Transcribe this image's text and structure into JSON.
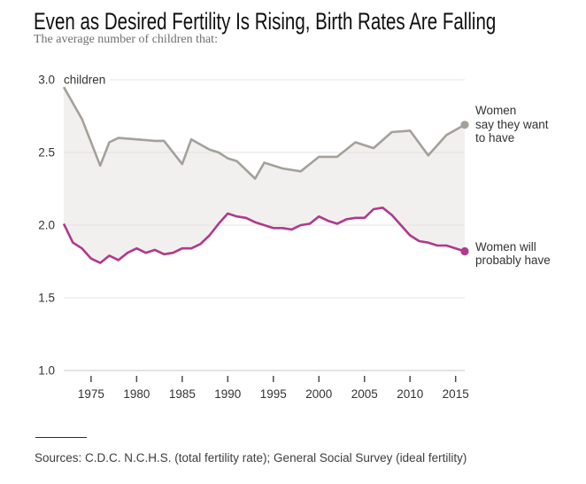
{
  "page": {
    "title": "Even as Desired Fertility Is Rising, Birth Rates Are Falling",
    "subtitle": "The average number of children that:",
    "source_note": "Sources: C.D.C. N.C.H.S. (total fertility rate); General Social Survey (ideal fertility)"
  },
  "annotations": {
    "ideal_label": "Women\nsay they want\nto have",
    "tfr_label": "Women will\nprobably have"
  },
  "colors": {
    "ideal_line": "#a5a099",
    "tfr_line": "#b0388e",
    "band_fill": "#f1f0ee",
    "gridline": "#e4e2e0",
    "axis_line": "#c8c7c5",
    "tick": "#4d4d4d",
    "axis_text": "#333333"
  },
  "chart_data": {
    "type": "line",
    "title": "Even as Desired Fertility Is Rising, Birth Rates Are Falling",
    "subtitle": "The average number of children that:",
    "unit_label": "children",
    "xlabel": "",
    "ylabel": "children",
    "xlim": [
      1972,
      2016
    ],
    "ylim": [
      1.0,
      3.0
    ],
    "x_ticks": [
      1975,
      1980,
      1985,
      1990,
      1995,
      2000,
      2005,
      2010,
      2015
    ],
    "y_ticks": [
      3.0,
      2.5,
      2.0,
      1.5,
      1.0
    ],
    "grid": true,
    "legend_position": "right-of-line-ends",
    "band_between_series": true,
    "series": [
      {
        "id": "ideal",
        "name": "Women say they want to have",
        "color_key": "ideal_line",
        "points": [
          [
            1972,
            2.95
          ],
          [
            1974,
            2.73
          ],
          [
            1976,
            2.41
          ],
          [
            1977,
            2.57
          ],
          [
            1978,
            2.6
          ],
          [
            1980,
            2.59
          ],
          [
            1982,
            2.58
          ],
          [
            1983,
            2.58
          ],
          [
            1985,
            2.42
          ],
          [
            1986,
            2.59
          ],
          [
            1988,
            2.52
          ],
          [
            1989,
            2.5
          ],
          [
            1990,
            2.46
          ],
          [
            1991,
            2.44
          ],
          [
            1993,
            2.32
          ],
          [
            1994,
            2.43
          ],
          [
            1996,
            2.39
          ],
          [
            1998,
            2.37
          ],
          [
            2000,
            2.47
          ],
          [
            2002,
            2.47
          ],
          [
            2004,
            2.57
          ],
          [
            2006,
            2.53
          ],
          [
            2008,
            2.64
          ],
          [
            2010,
            2.65
          ],
          [
            2012,
            2.48
          ],
          [
            2014,
            2.62
          ],
          [
            2016,
            2.69
          ]
        ]
      },
      {
        "id": "tfr",
        "name": "Women will probably have",
        "color_key": "tfr_line",
        "points": [
          [
            1972,
            2.01
          ],
          [
            1973,
            1.88
          ],
          [
            1974,
            1.84
          ],
          [
            1975,
            1.77
          ],
          [
            1976,
            1.74
          ],
          [
            1977,
            1.79
          ],
          [
            1978,
            1.76
          ],
          [
            1979,
            1.81
          ],
          [
            1980,
            1.84
          ],
          [
            1981,
            1.81
          ],
          [
            1982,
            1.83
          ],
          [
            1983,
            1.8
          ],
          [
            1984,
            1.81
          ],
          [
            1985,
            1.84
          ],
          [
            1986,
            1.84
          ],
          [
            1987,
            1.87
          ],
          [
            1988,
            1.93
          ],
          [
            1989,
            2.01
          ],
          [
            1990,
            2.08
          ],
          [
            1991,
            2.06
          ],
          [
            1992,
            2.05
          ],
          [
            1993,
            2.02
          ],
          [
            1994,
            2.0
          ],
          [
            1995,
            1.98
          ],
          [
            1996,
            1.98
          ],
          [
            1997,
            1.97
          ],
          [
            1998,
            2.0
          ],
          [
            1999,
            2.01
          ],
          [
            2000,
            2.06
          ],
          [
            2001,
            2.03
          ],
          [
            2002,
            2.01
          ],
          [
            2003,
            2.04
          ],
          [
            2004,
            2.05
          ],
          [
            2005,
            2.05
          ],
          [
            2006,
            2.11
          ],
          [
            2007,
            2.12
          ],
          [
            2008,
            2.07
          ],
          [
            2009,
            2.0
          ],
          [
            2010,
            1.93
          ],
          [
            2011,
            1.89
          ],
          [
            2012,
            1.88
          ],
          [
            2013,
            1.86
          ],
          [
            2014,
            1.86
          ],
          [
            2015,
            1.84
          ],
          [
            2016,
            1.82
          ]
        ]
      }
    ]
  }
}
